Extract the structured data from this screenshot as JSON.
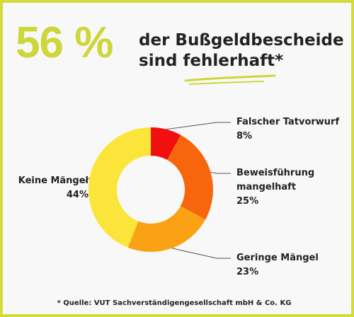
{
  "headline": {
    "percent": "56 %",
    "line1": "der Bußgeldbescheide",
    "line2_a": "sind ",
    "line2_b": "fehlerhaft",
    "line2_c": "*"
  },
  "source_note": "* Quelle: VUT Sachverständigengesellschaft mbH & Co. KG",
  "colors": {
    "frame": "#d4dc3c",
    "headline_accent": "#cdd63a",
    "underline": "#cdd63a"
  },
  "chart_data": {
    "type": "pie",
    "donut": true,
    "start_angle_deg": 0,
    "direction": "clockwise",
    "slices": [
      {
        "label_lines": [
          "Falscher Tatvorwurf"
        ],
        "value": 8,
        "value_label": "8%",
        "color": "#f20f0f"
      },
      {
        "label_lines": [
          "Beweisführung",
          "mangelhaft"
        ],
        "value": 25,
        "value_label": "25%",
        "color": "#f7660c"
      },
      {
        "label_lines": [
          "Geringe Mängel"
        ],
        "value": 23,
        "value_label": "23%",
        "color": "#fba214"
      },
      {
        "label_lines": [
          "Keine Mängel"
        ],
        "value": 44,
        "value_label": "44%",
        "color": "#fbe53a"
      }
    ]
  }
}
